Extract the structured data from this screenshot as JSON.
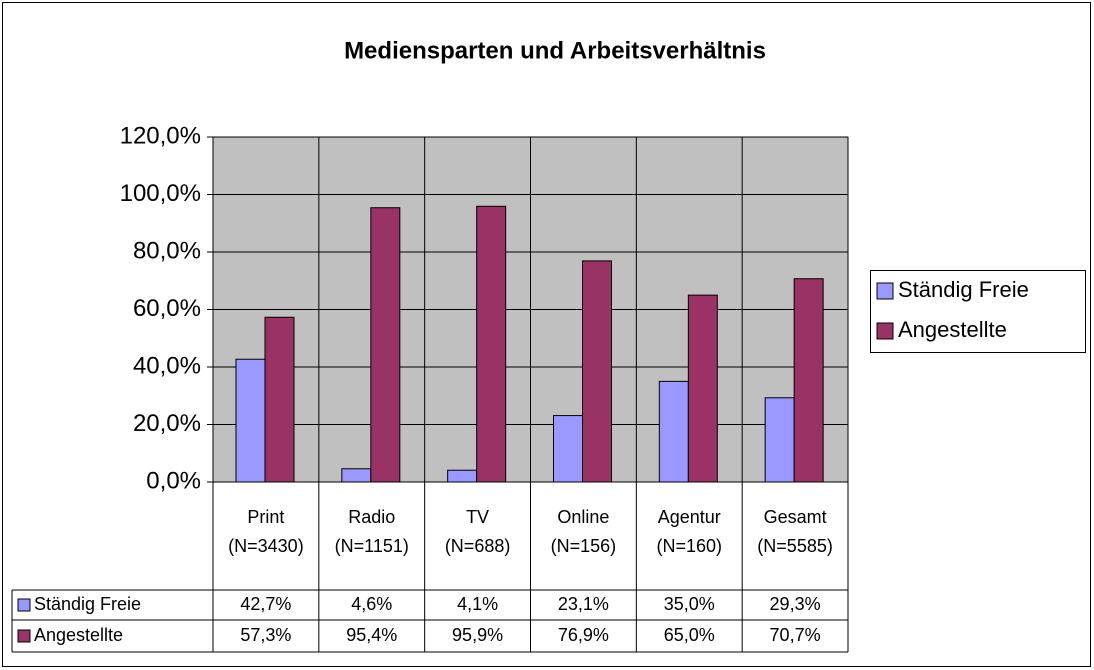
{
  "chart_data": {
    "type": "bar",
    "title": "Mediensparten und Arbeitsverhältnis",
    "categories": [
      [
        "Print",
        "(N=3430)"
      ],
      [
        "Radio",
        "(N=1151)"
      ],
      [
        "TV",
        "(N=688)"
      ],
      [
        "Online",
        "(N=156)"
      ],
      [
        "Agentur",
        "(N=160)"
      ],
      [
        "Gesamt",
        "(N=5585)"
      ]
    ],
    "series": [
      {
        "name": "Ständig Freie",
        "color": "#9999ff",
        "values": [
          42.7,
          4.6,
          4.1,
          23.1,
          35.0,
          29.3
        ],
        "value_labels": [
          "42,7%",
          "4,6%",
          "4,1%",
          "23,1%",
          "35,0%",
          "29,3%"
        ]
      },
      {
        "name": "Angestellte",
        "color": "#993366",
        "values": [
          57.3,
          95.4,
          95.9,
          76.9,
          65.0,
          70.7
        ],
        "value_labels": [
          "57,3%",
          "95,4%",
          "95,9%",
          "76,9%",
          "65,0%",
          "70,7%"
        ]
      }
    ],
    "ylim": [
      0,
      120
    ],
    "yticks": [
      {
        "value": 0,
        "label": "0,0%"
      },
      {
        "value": 20,
        "label": "20,0%"
      },
      {
        "value": 40,
        "label": "40,0%"
      },
      {
        "value": 60,
        "label": "60,0%"
      },
      {
        "value": 80,
        "label": "80,0%"
      },
      {
        "value": 100,
        "label": "100,0%"
      },
      {
        "value": 120,
        "label": "120,0%"
      }
    ],
    "grid": true,
    "legend": "right"
  }
}
